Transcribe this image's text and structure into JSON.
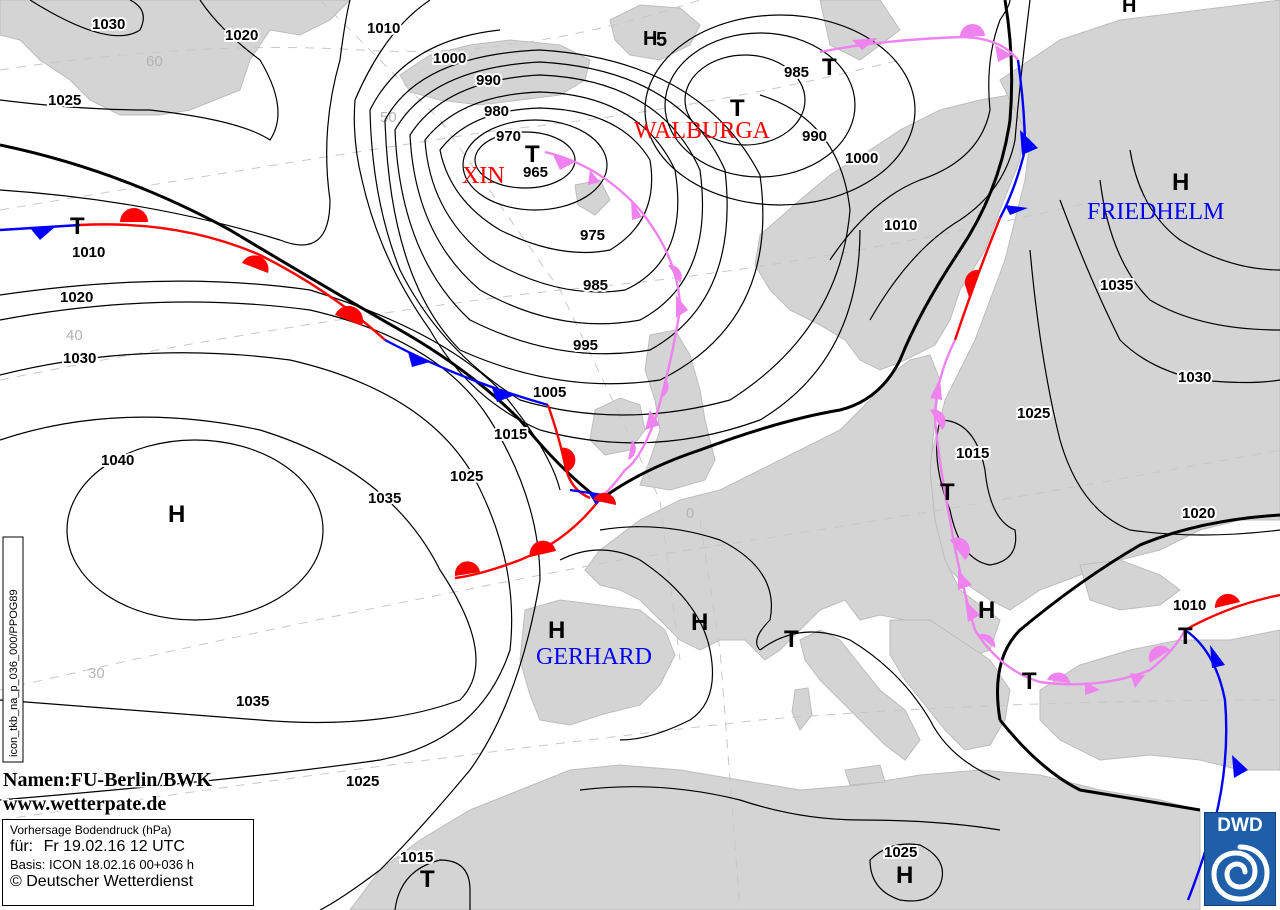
{
  "map": {
    "graticule_labels": [
      "60",
      "50",
      "40",
      "30",
      "0"
    ],
    "isobar_labels": [
      "1030",
      "1020",
      "1025",
      "1010",
      "1000",
      "990",
      "980",
      "970",
      "965",
      "975",
      "985",
      "995",
      "1005",
      "1015",
      "1025",
      "1035",
      "1040",
      "1010",
      "1020",
      "1030",
      "1035",
      "1025",
      "985",
      "990",
      "1000",
      "1010",
      "1035",
      "1030",
      "1025",
      "1015",
      "1020",
      "1010",
      "1015",
      "1025"
    ],
    "centers": {
      "iceland_high_small": "H",
      "svalbard_high": "H",
      "svalbard_high_value": "5",
      "xin_low": "T",
      "atlantic_low": "T",
      "walburga_low_1": "T",
      "walburga_low_2": "T",
      "friedhelm_high": "H",
      "baltic_low": "T",
      "azores_high": "H",
      "iberia_high": "H",
      "france_high": "H",
      "italy_low": "T",
      "balkan_high": "H",
      "greece_low": "T",
      "turkey_low": "T",
      "nafrica_low": "T",
      "sahara_high": "H"
    },
    "names": {
      "xin": "XIN",
      "walburga": "WALBURGA",
      "friedhelm": "FRIEDHELM",
      "gerhard": "GERHARD"
    },
    "colors": {
      "warm_front": "#ff0000",
      "cold_front": "#0000ff",
      "occlusion": "#ee82ee",
      "land": "#d4d4d4"
    }
  },
  "credits": {
    "names_line": "Namen:FU-Berlin/BWK",
    "url_line": "www.wetterpate.de"
  },
  "side_label": "icon_tkb_na_p_036_000/PPOG89",
  "info": {
    "title": "Vorhersage Bodendruck (hPa)",
    "valid_prefix": "für:",
    "valid_time": "Fr 19.02.16  12 UTC",
    "basis": "Basis: ICON  18.02.16 00+036 h",
    "copyright": "© Deutscher Wetterdienst"
  },
  "logo": {
    "text": "DWD",
    "icon": "dwd-swirl-icon"
  }
}
